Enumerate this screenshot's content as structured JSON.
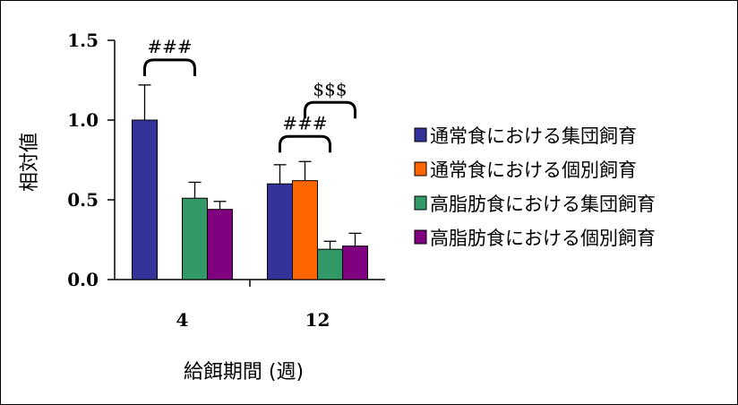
{
  "chart_data": {
    "type": "bar",
    "categories": [
      "4",
      "12"
    ],
    "series": [
      {
        "name": "通常食における集団飼育",
        "color": "#333399",
        "values": [
          1.0,
          0.6
        ],
        "errors": [
          0.22,
          0.12
        ]
      },
      {
        "name": "通常食における個別飼育",
        "color": "#FF6600",
        "values": [
          null,
          0.62
        ],
        "errors": [
          null,
          0.12
        ]
      },
      {
        "name": "高脂肪食における集団飼育",
        "color": "#339966",
        "values": [
          0.51,
          0.19
        ],
        "errors": [
          0.1,
          0.05
        ]
      },
      {
        "name": "高脂肪食における個別飼育",
        "color": "#800080",
        "values": [
          0.44,
          0.21
        ],
        "errors": [
          0.05,
          0.08
        ]
      }
    ],
    "ylim": [
      0,
      1.5
    ],
    "yticks": [
      "0.0",
      "0.5",
      "1.0",
      "1.5"
    ],
    "ylabel": "相対値",
    "xlabel": "給餌期間 (週)",
    "annotations": [
      {
        "label": "###",
        "category": "4",
        "between": [
          0,
          2
        ]
      },
      {
        "label": "###",
        "category": "12",
        "between": [
          0,
          2
        ]
      },
      {
        "label": "$$$",
        "category": "12",
        "between": [
          1,
          3
        ]
      }
    ],
    "legend_position": "right",
    "grid": false
  }
}
